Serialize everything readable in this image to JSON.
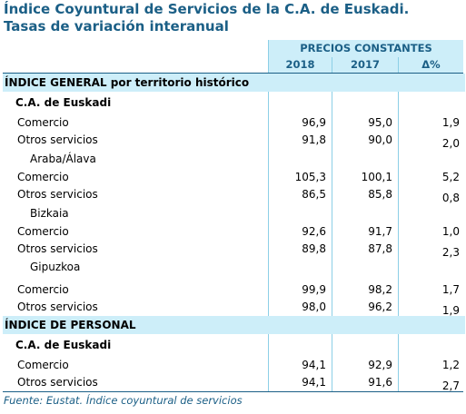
{
  "title_line1": "Índice Coyuntural de Servicios de la C.A. de Euskadi.",
  "title_line2": "Tasas de variación interanual",
  "header": {
    "group_label": "PRECIOS CONSTANTES",
    "col_2018": "2018",
    "col_2017": "2017",
    "col_delta": "Δ%"
  },
  "sections": [
    {
      "label": "ÍNDICE GENERAL por territorio histórico",
      "sub_label": "C.A. de Euskadi",
      "blocks": [
        {
          "region": "",
          "rows": [
            {
              "label": "Comercio",
              "v2018": "96,9",
              "v2017": "95,0",
              "delta": "1,9"
            },
            {
              "label": "Otros servicios",
              "v2018": "91,8",
              "v2017": "90,0",
              "delta": "2,0"
            }
          ]
        },
        {
          "region": "Araba/Álava",
          "rows": [
            {
              "label": "Comercio",
              "v2018": "105,3",
              "v2017": "100,1",
              "delta": "5,2"
            },
            {
              "label": "Otros servicios",
              "v2018": "86,5",
              "v2017": "85,8",
              "delta": "0,8"
            }
          ]
        },
        {
          "region": "Bizkaia",
          "rows": [
            {
              "label": "Comercio",
              "v2018": "92,6",
              "v2017": "91,7",
              "delta": "1,0"
            },
            {
              "label": "Otros servicios",
              "v2018": "89,8",
              "v2017": "87,8",
              "delta": "2,3"
            }
          ]
        },
        {
          "region": "Gipuzkoa",
          "rows": [
            {
              "label": "Comercio",
              "v2018": "99,9",
              "v2017": "98,2",
              "delta": "1,7"
            },
            {
              "label": "Otros servicios",
              "v2018": "98,0",
              "v2017": "96,2",
              "delta": "1,9"
            }
          ]
        }
      ]
    },
    {
      "label": "ÍNDICE DE PERSONAL",
      "sub_label": "C.A. de Euskadi",
      "blocks": [
        {
          "region": "",
          "rows": [
            {
              "label": "Comercio",
              "v2018": "94,1",
              "v2017": "92,9",
              "delta": "1,2"
            },
            {
              "label": "Otros servicios",
              "v2018": "94,1",
              "v2017": "91,6",
              "delta": "2,7"
            }
          ]
        }
      ]
    }
  ],
  "source": "Fuente: Eustat. Índice coyuntural de servicios"
}
